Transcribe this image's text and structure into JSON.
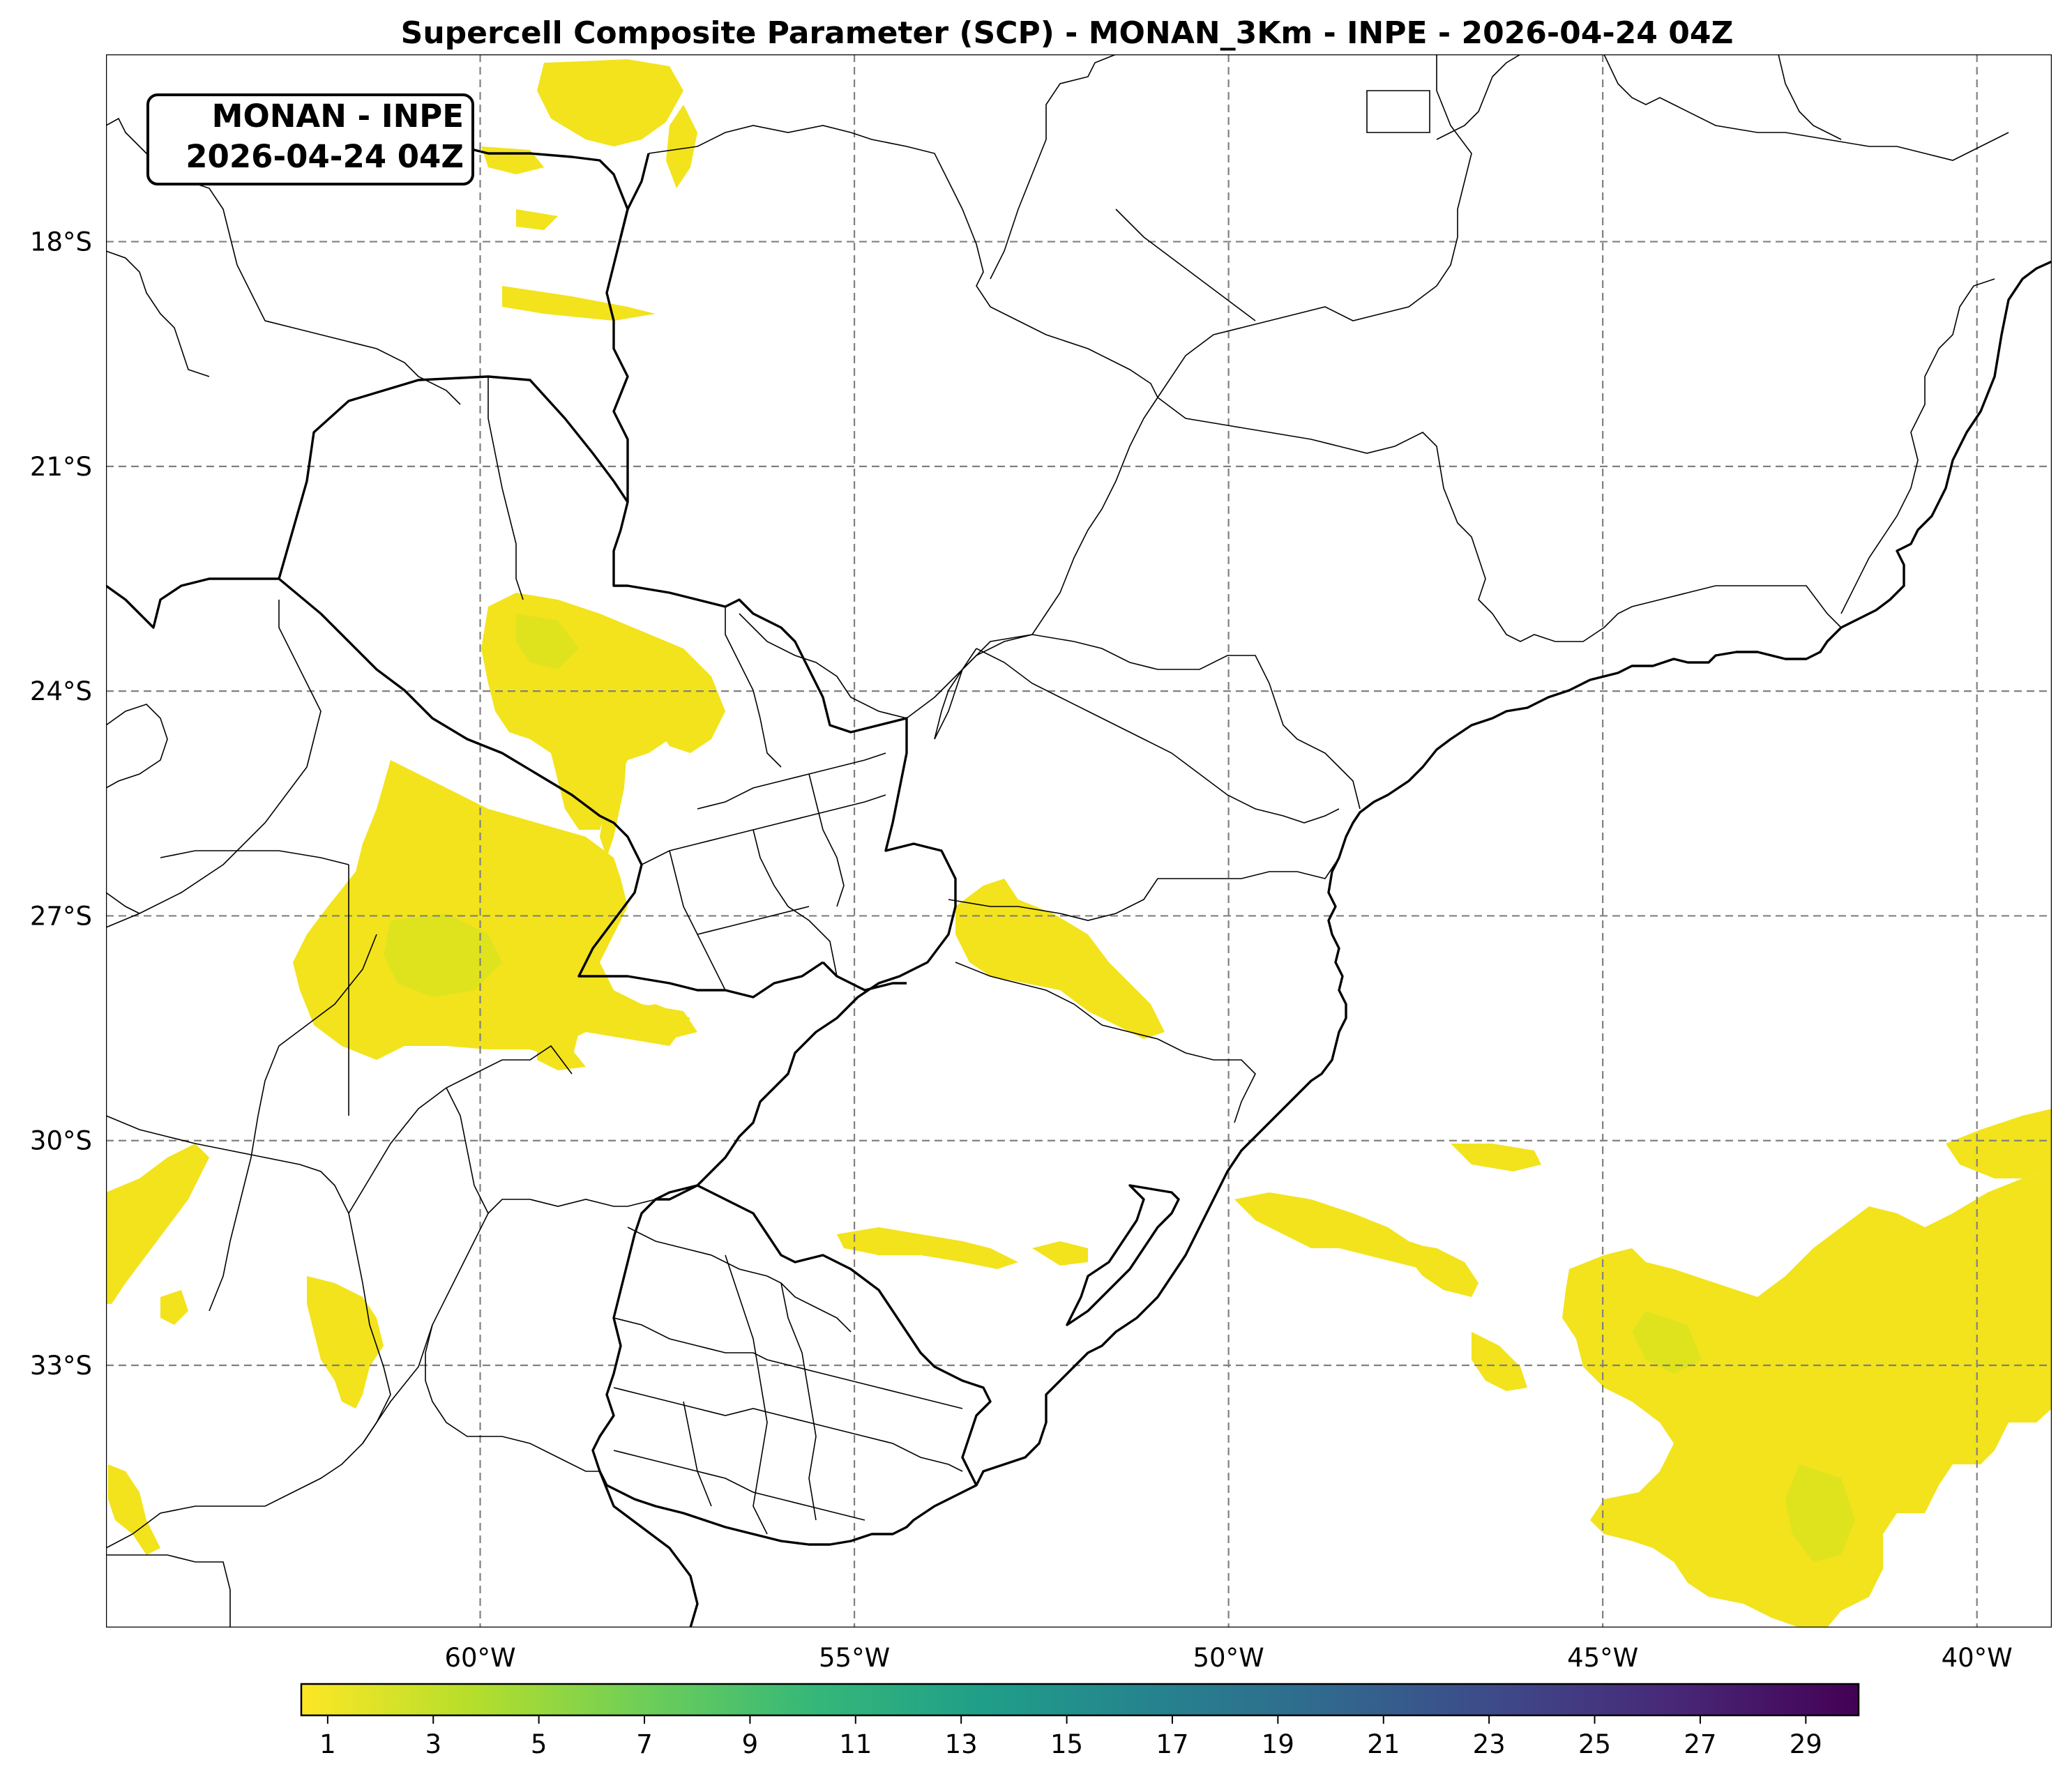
{
  "title": "Supercell Composite Parameter (SCP) - MONAN_3Km - INPE - 2026-04-24 04Z",
  "stamp": {
    "line1": "MONAN - INPE",
    "line2": "2026-04-24 04Z"
  },
  "map": {
    "projection": "PlateCarree",
    "lon_range": [
      -65,
      -39
    ],
    "lat_range": [
      -36.5,
      -15.5
    ],
    "gridlines": {
      "style": "dashed",
      "color": "#808080"
    },
    "lon_ticks": [
      {
        "value": -60,
        "label": "60°W"
      },
      {
        "value": -55,
        "label": "55°W"
      },
      {
        "value": -50,
        "label": "50°W"
      },
      {
        "value": -45,
        "label": "45°W"
      },
      {
        "value": -40,
        "label": "40°W"
      }
    ],
    "lat_ticks": [
      {
        "value": -18,
        "label": "18°S"
      },
      {
        "value": -21,
        "label": "21°S"
      },
      {
        "value": -24,
        "label": "24°S"
      },
      {
        "value": -27,
        "label": "27°S"
      },
      {
        "value": -30,
        "label": "30°S"
      },
      {
        "value": -33,
        "label": "33°S"
      }
    ],
    "fill_color": "#f2e31c",
    "fill_core_color": "#d8e21f"
  },
  "colorbar": {
    "colormap": "viridis_r",
    "range": [
      0.5,
      30
    ],
    "tick_labels": [
      "1",
      "3",
      "5",
      "7",
      "9",
      "11",
      "13",
      "15",
      "17",
      "19",
      "21",
      "23",
      "25",
      "27",
      "29"
    ],
    "colors": [
      "#fde725",
      "#b5de2b",
      "#6ece58",
      "#35b779",
      "#1f9e89",
      "#26828e",
      "#31688e",
      "#3e4989",
      "#482878",
      "#440154"
    ]
  }
}
